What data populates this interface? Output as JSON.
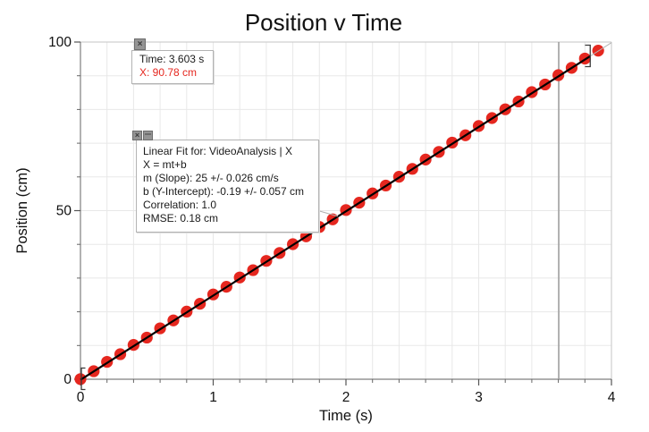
{
  "window": {
    "background": "#ffffff"
  },
  "chart_data": {
    "type": "scatter",
    "title": "Position v Time",
    "xlabel": "Time (s)",
    "ylabel": "Position (cm)",
    "xlim": [
      0,
      4
    ],
    "ylim": [
      0,
      100
    ],
    "x_major_ticks": [
      0,
      1,
      2,
      3,
      4
    ],
    "x_minor_step": 0.2,
    "y_major_ticks": [
      0,
      50,
      100
    ],
    "y_minor_step": 10,
    "grid": {
      "on": true,
      "x_step": 0.2,
      "y_step": 10,
      "color": "#e8e8e8"
    },
    "legend_position": "none",
    "series": [
      {
        "name": "VideoAnalysis | X",
        "marker": "circle",
        "color": "#e5271f",
        "x": [
          0.0,
          0.1,
          0.2,
          0.3,
          0.4,
          0.5,
          0.6,
          0.7,
          0.8,
          0.9,
          1.0,
          1.1,
          1.2,
          1.3,
          1.4,
          1.5,
          1.6,
          1.7,
          1.8,
          1.9,
          2.0,
          2.1,
          2.2,
          2.3,
          2.4,
          2.5,
          2.6,
          2.7,
          2.8,
          2.9,
          3.0,
          3.1,
          3.2,
          3.3,
          3.4,
          3.5,
          3.6,
          3.7,
          3.8,
          3.9
        ],
        "y": [
          0.05,
          2.38,
          5.15,
          7.42,
          10.18,
          12.35,
          15.1,
          17.45,
          20.05,
          22.38,
          25.15,
          27.42,
          30.18,
          32.35,
          35.1,
          37.45,
          40.05,
          42.38,
          45.15,
          47.42,
          50.18,
          52.35,
          55.1,
          57.45,
          60.05,
          62.38,
          65.15,
          67.42,
          70.18,
          72.35,
          75.1,
          77.45,
          80.05,
          82.38,
          85.15,
          87.42,
          90.18,
          92.35,
          95.1,
          97.45
        ]
      }
    ],
    "fit": {
      "equation": "X = mt+b",
      "m": 25,
      "b": -0.19,
      "range_t": [
        0,
        3.84
      ],
      "line_color": "#000000"
    },
    "cursor": {
      "time": 3.603,
      "position_cm": 90.78,
      "color": "#9b9b9b"
    }
  },
  "examine_box": {
    "time_label": "Time: 3.603 s",
    "x_label": "X: 90.78 cm"
  },
  "fit_box": {
    "lines": [
      "Linear Fit for: VideoAnalysis | X",
      "X = mt+b",
      "m (Slope): 25 +/- 0.026 cm/s",
      "b (Y-Intercept): -0.19 +/- 0.057 cm",
      "Correlation: 1.0",
      "RMSE: 0.18 cm"
    ]
  },
  "icons": {
    "close_glyph": "×"
  },
  "colors": {
    "point_red": "#e5271f",
    "fit_black": "#000000",
    "extended_fit_gray": "#b4b4b4",
    "axis_gray": "#7f7f7f",
    "frame_gray": "#c6c6c6",
    "grid_gray": "#e8e8e8",
    "cursor_gray": "#9b9b9b",
    "text_black": "#111111"
  }
}
